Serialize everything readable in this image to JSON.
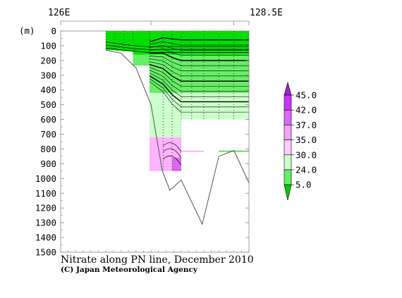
{
  "chart_data": {
    "type": "contour-section",
    "title": "Nitrate along PN line, December 2010",
    "credit": "(C) Japan Meteorological Agency",
    "x_axis": {
      "position": "top",
      "labels": [
        "126E",
        "128.5E"
      ],
      "range": [
        126.0,
        128.5
      ]
    },
    "y_axis": {
      "unit_label": "(m)",
      "range": [
        0,
        1500
      ],
      "ticks": [
        0,
        100,
        200,
        300,
        400,
        500,
        600,
        700,
        800,
        900,
        1000,
        1100,
        1200,
        1300,
        1400,
        1500
      ],
      "tick_labels": [
        "0",
        "100",
        "200",
        "300",
        "400",
        "500",
        "600",
        "700",
        "800",
        "900",
        "1000",
        "1100",
        "1200",
        "1300",
        "1400",
        "1500"
      ]
    },
    "legend": {
      "labels": [
        "45.0",
        "42.0",
        "37.0",
        "35.0",
        "30.0",
        "24.0",
        "5.0"
      ],
      "colors": [
        "#cc33ff",
        "#e066ff",
        "#f3a3f3",
        "#ffccff",
        "#ccffcc",
        "#66ee66",
        "#00dd00"
      ],
      "end_top_color": "#a020d0",
      "end_bottom_color": "#00cc00"
    },
    "colors": {
      "shallow": "#00e000",
      "mid": "#66ee66",
      "deep": "#ccffcc",
      "high": "#ffb3ff",
      "highest": "#dd66ee"
    },
    "stations_lon": [
      126.6,
      126.72,
      126.84,
      126.96,
      127.18,
      127.36,
      127.48,
      127.6,
      127.74,
      127.9,
      128.1,
      128.3,
      128.5
    ],
    "station_max_depth": [
      130,
      130,
      135,
      140,
      235,
      950,
      950,
      950,
      600,
      600,
      600,
      600,
      600
    ],
    "bottom_profile": [
      [
        126.6,
        130
      ],
      [
        126.8,
        150
      ],
      [
        127.0,
        250
      ],
      [
        127.2,
        500
      ],
      [
        127.35,
        950
      ],
      [
        127.45,
        1080
      ],
      [
        127.6,
        1010
      ],
      [
        127.88,
        1310
      ],
      [
        128.1,
        850
      ],
      [
        128.3,
        810
      ],
      [
        128.5,
        1030
      ]
    ]
  }
}
